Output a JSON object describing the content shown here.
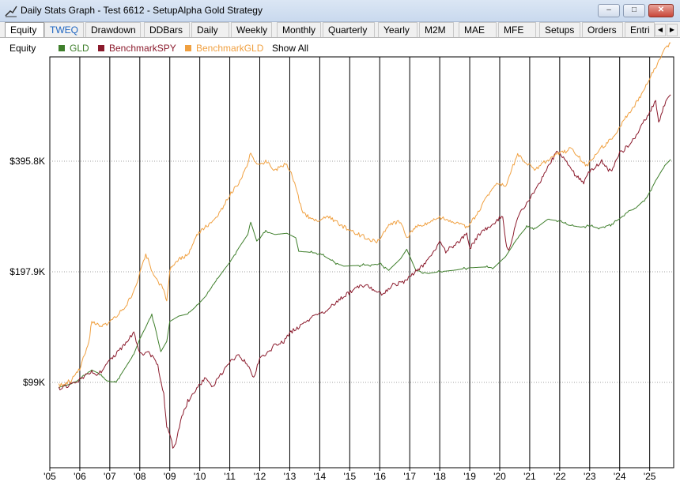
{
  "window": {
    "title": "Daily Stats Graph - Test 6612 - SetupAlpha Gold Strategy"
  },
  "tabs": [
    {
      "label": "Equity",
      "active": true
    },
    {
      "label": "TWEQ",
      "accent": true
    },
    {
      "label": "Drawdown"
    },
    {
      "label": "DDBars"
    },
    {
      "label": "Daily"
    },
    {
      "label": "Weekly"
    },
    {
      "label": "Monthly"
    },
    {
      "label": "Quarterly"
    },
    {
      "label": "Yearly"
    },
    {
      "label": "M2M"
    },
    {
      "label": "MAE"
    },
    {
      "label": "MFE"
    },
    {
      "label": "Setups"
    },
    {
      "label": "Orders"
    },
    {
      "label": "Entri"
    }
  ],
  "legend": {
    "title": "Equity",
    "show_all": "Show All",
    "series": [
      {
        "name": "GLD",
        "color": "#3f7f2c"
      },
      {
        "name": "BenchmarkSPY",
        "color": "#8b1a2c"
      },
      {
        "name": "BenchmarkGLD",
        "color": "#f0a040"
      }
    ]
  },
  "chart_data": {
    "type": "line",
    "x_tick_labels": [
      "'05",
      "'06",
      "'07",
      "'08",
      "'09",
      "'10",
      "'11",
      "'12",
      "'13",
      "'14",
      "'15",
      "'16",
      "'17",
      "'18",
      "'19",
      "'20",
      "'21",
      "'22",
      "'23",
      "'24",
      "'25"
    ],
    "y_tick_labels": [
      "$395.8K",
      "$197.9K",
      "$99K"
    ],
    "y_tick_values": [
      395800,
      197900,
      99000
    ],
    "y_scale": "log",
    "vertical_grid": true,
    "legend_position": "top-left",
    "series": [
      {
        "name": "GLD",
        "color": "#3f7f2c",
        "x": [
          2005.3,
          2005.7,
          2006.0,
          2006.4,
          2006.6,
          2006.9,
          2007.2,
          2007.5,
          2007.8,
          2008.0,
          2008.2,
          2008.4,
          2008.7,
          2008.9,
          2009.0,
          2009.3,
          2009.6,
          2009.9,
          2010.2,
          2010.5,
          2010.8,
          2011.0,
          2011.3,
          2011.6,
          2011.7,
          2011.9,
          2012.2,
          2012.5,
          2012.9,
          2013.2,
          2013.3,
          2013.6,
          2014.0,
          2014.5,
          2014.8,
          2015.3,
          2015.8,
          2016.0,
          2016.3,
          2016.7,
          2016.9,
          2017.2,
          2017.6,
          2018.0,
          2018.5,
          2019.0,
          2019.5,
          2019.8,
          2020.2,
          2020.6,
          2020.9,
          2021.2,
          2021.6,
          2022.0,
          2022.3,
          2022.7,
          2023.0,
          2023.3,
          2023.7,
          2024.0,
          2024.3,
          2024.5,
          2024.9,
          2025.2,
          2025.5,
          2025.7
        ],
        "y": [
          96000,
          98000,
          101000,
          107000,
          105000,
          100000,
          99000,
          108000,
          118000,
          130000,
          140000,
          152000,
          120000,
          128000,
          145000,
          150000,
          152000,
          160000,
          170000,
          185000,
          200000,
          210000,
          230000,
          250000,
          270000,
          240000,
          255000,
          250000,
          252000,
          245000,
          225000,
          224000,
          222000,
          210000,
          205000,
          206000,
          207000,
          208000,
          200000,
          215000,
          228000,
          200000,
          196000,
          198000,
          200000,
          203000,
          204000,
          203000,
          218000,
          245000,
          262000,
          260000,
          275000,
          272000,
          265000,
          262000,
          264000,
          260000,
          266000,
          276000,
          290000,
          293000,
          315000,
          350000,
          385000,
          400000
        ]
      },
      {
        "name": "BenchmarkSPY",
        "color": "#8b1a2c",
        "x": [
          2005.3,
          2005.6,
          2006.0,
          2006.4,
          2006.6,
          2006.9,
          2007.2,
          2007.5,
          2007.8,
          2008.0,
          2008.3,
          2008.6,
          2008.8,
          2008.9,
          2009.0,
          2009.1,
          2009.2,
          2009.4,
          2009.6,
          2009.9,
          2010.2,
          2010.4,
          2010.7,
          2011.0,
          2011.3,
          2011.6,
          2011.8,
          2012.0,
          2012.3,
          2012.5,
          2012.8,
          2013.0,
          2013.4,
          2013.8,
          2014.2,
          2014.6,
          2014.9,
          2015.3,
          2015.6,
          2015.9,
          2016.1,
          2016.4,
          2016.8,
          2017.2,
          2017.6,
          2018.0,
          2018.2,
          2018.6,
          2018.9,
          2019.0,
          2019.3,
          2019.8,
          2020.1,
          2020.2,
          2020.3,
          2020.6,
          2020.9,
          2021.3,
          2021.6,
          2021.9,
          2022.2,
          2022.5,
          2022.8,
          2023.0,
          2023.4,
          2023.7,
          2024.0,
          2024.4,
          2024.7,
          2025.0,
          2025.2,
          2025.3,
          2025.5,
          2025.7
        ],
        "y": [
          95000,
          97000,
          101000,
          106000,
          103000,
          112000,
          118000,
          126000,
          135000,
          118000,
          120000,
          110000,
          92000,
          75000,
          72000,
          66000,
          68000,
          80000,
          88000,
          95000,
          102000,
          96000,
          104000,
          112000,
          118000,
          110000,
          102000,
          115000,
          120000,
          125000,
          128000,
          135000,
          142000,
          150000,
          155000,
          165000,
          172000,
          180000,
          182000,
          174000,
          172000,
          182000,
          185000,
          198000,
          212000,
          238000,
          225000,
          238000,
          252000,
          228000,
          250000,
          268000,
          282000,
          238000,
          225000,
          280000,
          305000,
          340000,
          380000,
          420000,
          400000,
          365000,
          345000,
          372000,
          395000,
          370000,
          415000,
          445000,
          490000,
          540000,
          580000,
          505000,
          565000,
          600000
        ]
      },
      {
        "name": "BenchmarkGLD",
        "color": "#f0a040",
        "x": [
          2005.3,
          2005.7,
          2006.0,
          2006.3,
          2006.4,
          2006.7,
          2006.9,
          2007.2,
          2007.5,
          2007.8,
          2008.0,
          2008.2,
          2008.5,
          2008.8,
          2008.9,
          2009.0,
          2009.3,
          2009.6,
          2009.9,
          2010.2,
          2010.5,
          2010.8,
          2011.0,
          2011.3,
          2011.6,
          2011.7,
          2011.9,
          2012.2,
          2012.5,
          2012.9,
          2013.2,
          2013.4,
          2013.6,
          2013.9,
          2014.3,
          2014.7,
          2014.9,
          2015.3,
          2015.7,
          2015.9,
          2016.3,
          2016.7,
          2016.9,
          2017.2,
          2017.6,
          2018.0,
          2018.5,
          2018.9,
          2019.2,
          2019.6,
          2019.9,
          2020.2,
          2020.6,
          2020.9,
          2021.2,
          2021.6,
          2021.9,
          2022.2,
          2022.4,
          2022.7,
          2022.9,
          2023.3,
          2023.6,
          2023.9,
          2024.2,
          2024.5,
          2024.8,
          2025.0,
          2025.3,
          2025.5,
          2025.7
        ],
        "y": [
          97000,
          100000,
          108000,
          128000,
          145000,
          140000,
          143000,
          150000,
          158000,
          175000,
          195000,
          222000,
          190000,
          178000,
          165000,
          200000,
          215000,
          220000,
          250000,
          262000,
          275000,
          300000,
          320000,
          345000,
          390000,
          420000,
          385000,
          395000,
          375000,
          390000,
          340000,
          290000,
          280000,
          272000,
          280000,
          265000,
          260000,
          250000,
          242000,
          238000,
          265000,
          272000,
          245000,
          262000,
          268000,
          278000,
          270000,
          262000,
          280000,
          320000,
          345000,
          340000,
          415000,
          390000,
          375000,
          400000,
          415000,
          420000,
          430000,
          400000,
          385000,
          425000,
          445000,
          475000,
          520000,
          560000,
          615000,
          670000,
          740000,
          800000,
          830000
        ]
      }
    ]
  }
}
